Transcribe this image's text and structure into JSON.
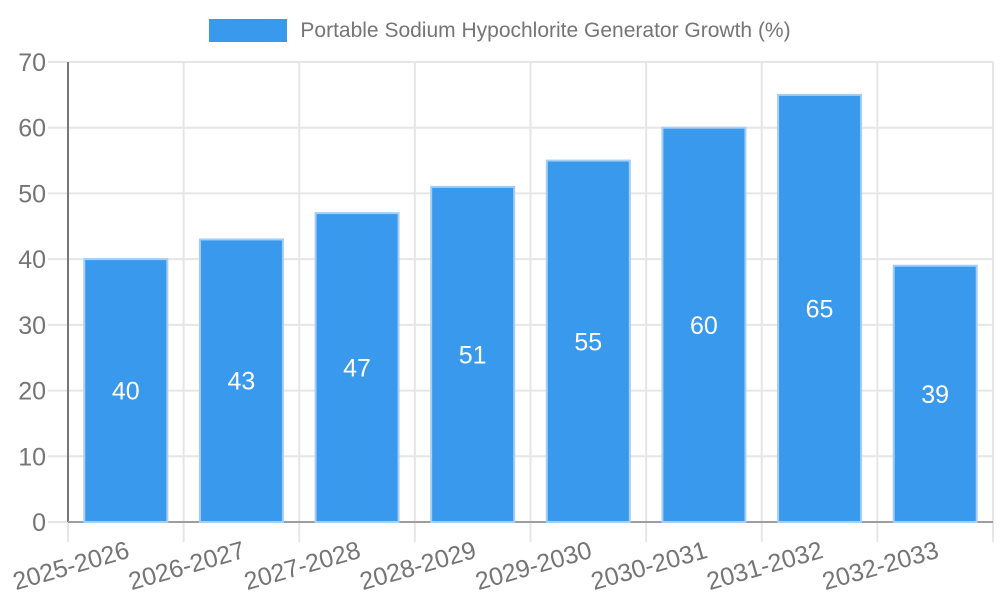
{
  "chart_data": {
    "type": "bar",
    "title": "Portable Sodium Hypochlorite Generator Growth (%)",
    "legend": [
      "Portable Sodium Hypochlorite Generator Growth (%)"
    ],
    "legend_position": "top",
    "categories": [
      "2025-2026",
      "2026-2027",
      "2027-2028",
      "2028-2029",
      "2029-2030",
      "2030-2031",
      "2031-2032",
      "2032-2033"
    ],
    "series": [
      {
        "name": "Portable Sodium Hypochlorite Generator Growth (%)",
        "values": [
          40,
          43,
          47,
          51,
          55,
          60,
          65,
          39
        ]
      }
    ],
    "xlabel": "",
    "ylabel": "",
    "ylim": [
      0,
      70
    ],
    "yticks": [
      0,
      10,
      20,
      30,
      40,
      50,
      60,
      70
    ],
    "grid": true,
    "value_labels": "inside-center",
    "x_tick_rotation_deg": -16
  },
  "style": {
    "bar_color": "#3999EC",
    "bar_border_color": "#A6CDF3",
    "grid_color": "#E6E6E6",
    "y_axis_color": "#777777",
    "x_axis_color": "#9E9E9E",
    "tick_label_color": "#757575",
    "legend_text_color": "#757575",
    "value_label_color": "#FFFFFF",
    "background": "#FFFFFF"
  }
}
